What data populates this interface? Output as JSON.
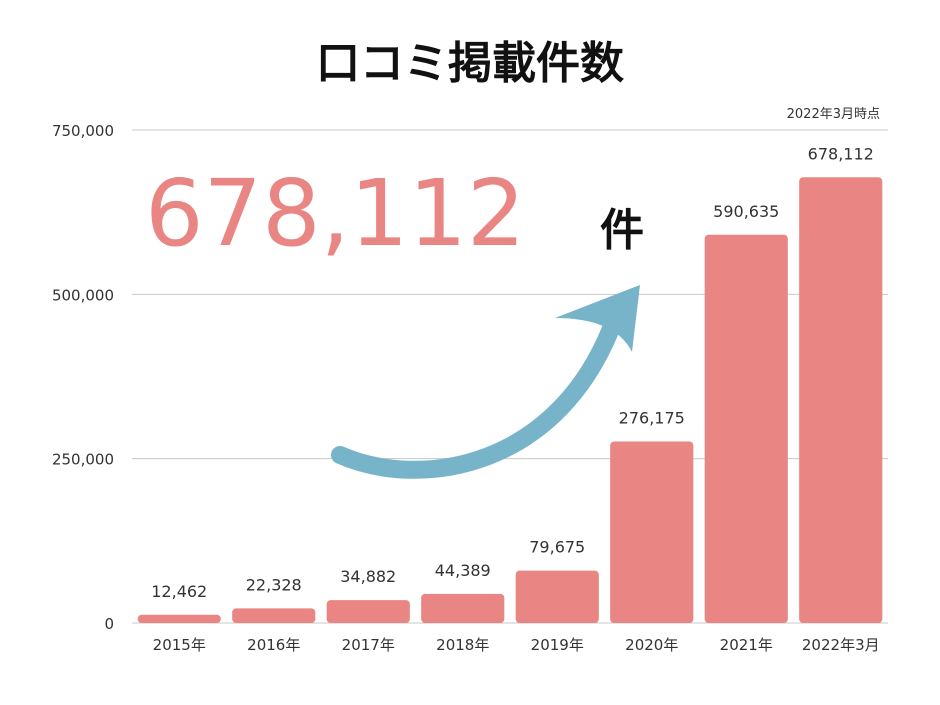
{
  "colors": {
    "bar": "#e98582",
    "highlight": "#e98582",
    "arrow": "#78b4c9",
    "text": "#333333",
    "title": "#111111"
  },
  "chart_data": {
    "type": "bar",
    "title": "口コミ掲載件数",
    "note": "2022年3月時点",
    "highlight": {
      "value": "678,112",
      "unit": "件"
    },
    "categories": [
      "2015年",
      "2016年",
      "2017年",
      "2018年",
      "2019年",
      "2020年",
      "2021年",
      "2022年3月"
    ],
    "values": [
      12462,
      22328,
      34882,
      44389,
      79675,
      276175,
      590635,
      678112
    ],
    "value_labels": [
      "12,462",
      "22,328",
      "34,882",
      "44,389",
      "79,675",
      "276,175",
      "590,635",
      "678,112"
    ],
    "ylim": [
      0,
      750000
    ],
    "yticks": [
      0,
      250000,
      500000,
      750000
    ],
    "ytick_labels": [
      "0",
      "250,000",
      "500,000",
      "750,000"
    ],
    "grid": true,
    "xlabel": "",
    "ylabel": ""
  }
}
